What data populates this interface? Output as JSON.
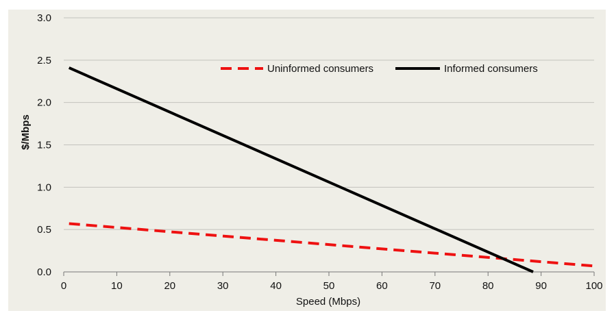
{
  "chart_data": {
    "type": "line",
    "title": "",
    "xlabel": "Speed (Mbps)",
    "ylabel": "$/Mbps",
    "xlim": [
      0,
      100
    ],
    "ylim": [
      0,
      3.0
    ],
    "x_ticks": [
      "0",
      "10",
      "20",
      "30",
      "40",
      "50",
      "60",
      "70",
      "80",
      "90",
      "100"
    ],
    "y_ticks": [
      "0.0",
      "0.5",
      "1.0",
      "1.5",
      "2.0",
      "2.5",
      "3.0"
    ],
    "grid": "horizontal",
    "legend_position": "top-right",
    "series": [
      {
        "name": "Uninformed consumers",
        "color": "#ee1111",
        "style": "dashed",
        "x": [
          1,
          100
        ],
        "y": [
          0.57,
          0.07
        ]
      },
      {
        "name": "Informed consumers",
        "color": "#000000",
        "style": "solid",
        "x": [
          1,
          88.5
        ],
        "y": [
          2.41,
          0.0
        ]
      }
    ]
  },
  "colors": {
    "plot_background": "#efeee7",
    "gridline": "#c2c2bd"
  }
}
